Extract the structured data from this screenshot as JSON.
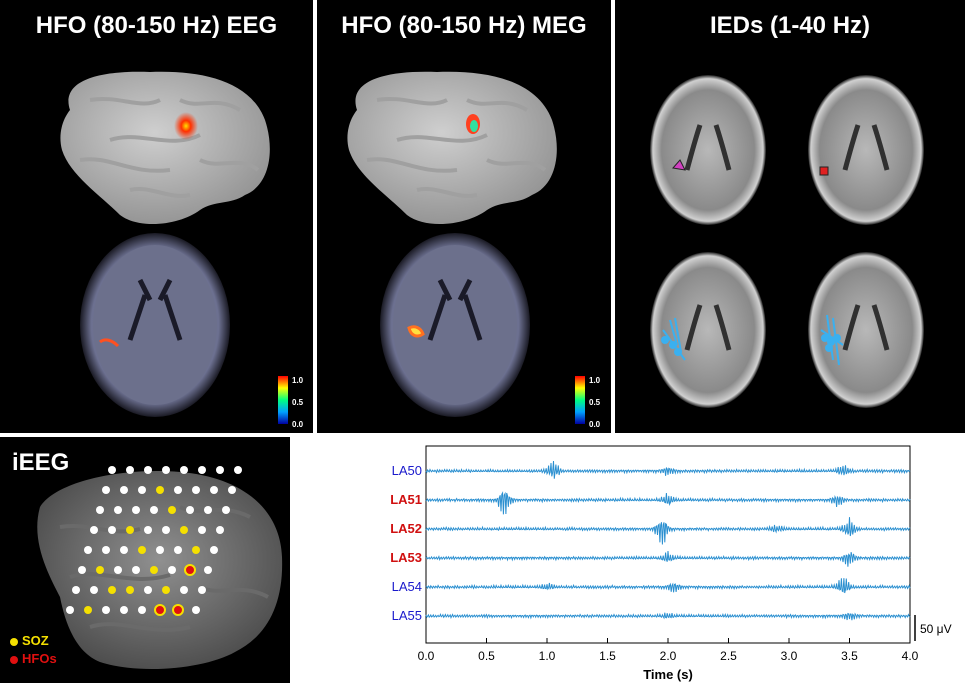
{
  "panels": {
    "eeg_title": "HFO (80-150 Hz) EEG",
    "meg_title": "HFO (80-150 Hz) MEG",
    "ieds_title": "IEDs (1-40 Hz)",
    "ieeg_title": "iEEG"
  },
  "colorbar": {
    "max": "1.0",
    "mid": "0.5",
    "min": "0.0"
  },
  "ieeg_legend": {
    "soz_label": "SOZ",
    "hfos_label": "HFOs",
    "soz_color": "#f5e000",
    "hfo_color": "#e01010"
  },
  "chart_data": {
    "type": "line",
    "xlabel": "Time (s)",
    "xlim": [
      0.0,
      4.0
    ],
    "x_ticks": [
      "0.0",
      "0.5",
      "1.0",
      "1.5",
      "2.0",
      "2.5",
      "3.0",
      "3.5",
      "4.0"
    ],
    "scale_bar_label": "50 μV",
    "trace_color": "#2a8fd0",
    "channels": [
      {
        "name": "LA50",
        "label_color": "#1a1acc",
        "bold": false,
        "bursts": [
          [
            1.05,
            1.0
          ],
          [
            2.0,
            0.5
          ],
          [
            3.45,
            0.6
          ]
        ]
      },
      {
        "name": "LA51",
        "label_color": "#d01010",
        "bold": true,
        "bursts": [
          [
            0.65,
            1.6
          ],
          [
            2.0,
            0.7
          ],
          [
            3.4,
            0.6
          ]
        ]
      },
      {
        "name": "LA52",
        "label_color": "#d01010",
        "bold": true,
        "bursts": [
          [
            1.95,
            1.6
          ],
          [
            2.9,
            0.4
          ],
          [
            3.5,
            1.2
          ]
        ]
      },
      {
        "name": "LA53",
        "label_color": "#d01010",
        "bold": true,
        "bursts": [
          [
            2.0,
            0.6
          ],
          [
            3.5,
            0.9
          ]
        ]
      },
      {
        "name": "LA54",
        "label_color": "#1a1acc",
        "bold": false,
        "bursts": [
          [
            1.0,
            0.4
          ],
          [
            2.05,
            0.6
          ],
          [
            3.45,
            1.1
          ]
        ]
      },
      {
        "name": "LA55",
        "label_color": "#1a1acc",
        "bold": false,
        "bursts": [
          [
            2.0,
            0.3
          ],
          [
            3.5,
            0.4
          ]
        ]
      }
    ]
  }
}
